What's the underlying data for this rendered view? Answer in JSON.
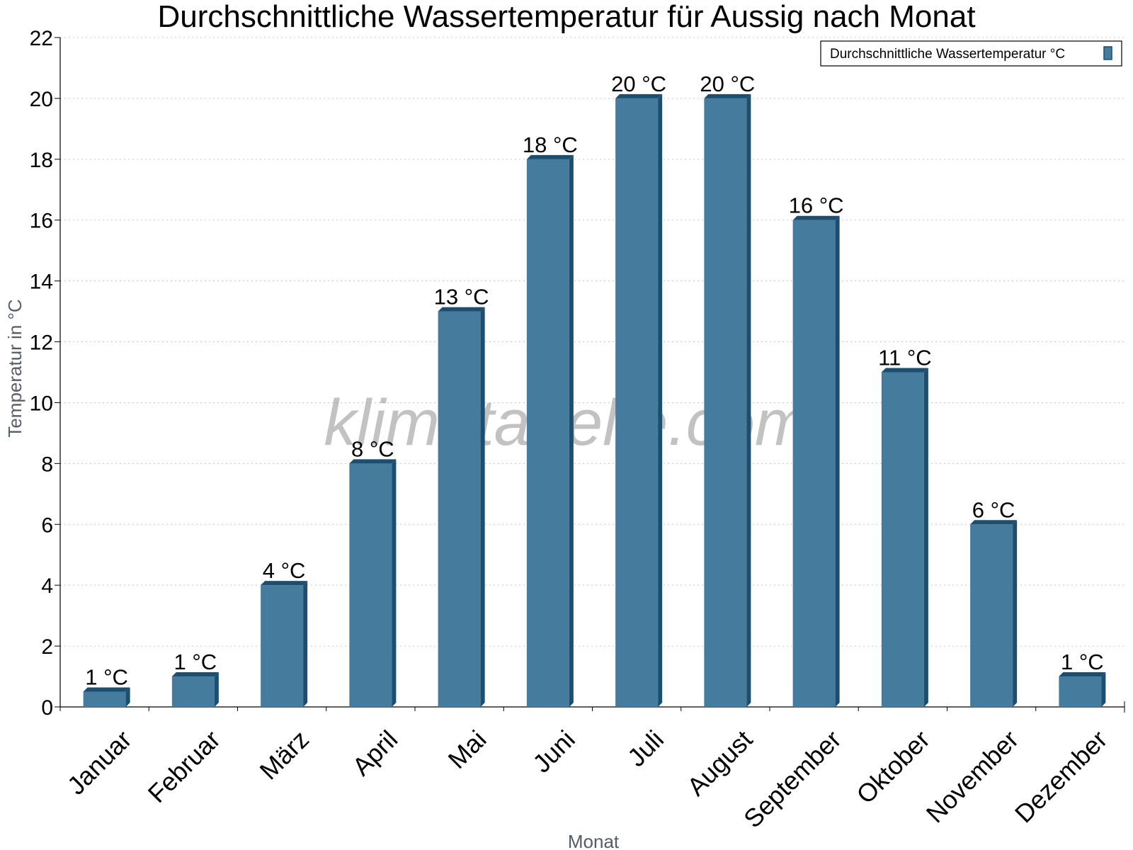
{
  "chart_data": {
    "type": "bar",
    "title": "Durchschnittliche Wassertemperatur für Aussig nach Monat",
    "xlabel": "Monat",
    "ylabel": "Temperatur in °C",
    "categories": [
      "Januar",
      "Februar",
      "März",
      "April",
      "Mai",
      "Juni",
      "Juli",
      "August",
      "September",
      "Oktober",
      "November",
      "Dezember"
    ],
    "series": [
      {
        "name": "Durchschnittliche Wassertemperatur °C",
        "values": [
          0.5,
          1,
          4,
          8,
          13,
          18,
          20,
          20,
          16,
          11,
          6,
          1
        ],
        "labels": [
          "1 °C",
          "1 °C",
          "4 °C",
          "8 °C",
          "13 °C",
          "18 °C",
          "20 °C",
          "20 °C",
          "16 °C",
          "11 °C",
          "6 °C",
          "1 °C"
        ],
        "color": "#457b9d",
        "shade_color": "#1d4e6f"
      }
    ],
    "ylim": [
      0,
      22
    ],
    "yticks": [
      0,
      2,
      4,
      6,
      8,
      10,
      12,
      14,
      16,
      18,
      20,
      22
    ],
    "grid": true,
    "legend_position": "top-right"
  },
  "watermark": "klimatabelle.com"
}
